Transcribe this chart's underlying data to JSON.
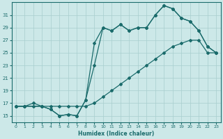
{
  "xlabel": "Humidex (Indice chaleur)",
  "bg_color": "#cce8e8",
  "line_color": "#1a6b6b",
  "grid_color": "#a8cece",
  "xlim": [
    -0.5,
    23.5
  ],
  "ylim": [
    14.0,
    33.0
  ],
  "yticks": [
    15,
    17,
    19,
    21,
    23,
    25,
    27,
    29,
    31
  ],
  "xticks": [
    0,
    1,
    2,
    3,
    4,
    5,
    6,
    7,
    8,
    9,
    10,
    11,
    12,
    13,
    14,
    15,
    16,
    17,
    18,
    19,
    20,
    21,
    22,
    23
  ],
  "line1_x": [
    0,
    1,
    2,
    3,
    4,
    5,
    6,
    7,
    8,
    9,
    10,
    11,
    12,
    13,
    14,
    15,
    16,
    17,
    18,
    19,
    20,
    21,
    22,
    23
  ],
  "line1_y": [
    16.5,
    16.5,
    16.5,
    16.5,
    16.5,
    16.5,
    16.5,
    16.5,
    16.5,
    17.0,
    18.0,
    19.0,
    20.0,
    21.0,
    22.0,
    23.0,
    24.0,
    25.0,
    26.0,
    26.5,
    27.0,
    27.0,
    25.0,
    25.0
  ],
  "line2_x": [
    0,
    1,
    2,
    3,
    4,
    5,
    6,
    7,
    8,
    9,
    10,
    11,
    12,
    13,
    14,
    15,
    16,
    17,
    18,
    19,
    20,
    21,
    22,
    23
  ],
  "line2_y": [
    16.5,
    16.5,
    17.0,
    16.5,
    16.0,
    15.0,
    15.2,
    15.0,
    17.5,
    23.0,
    29.0,
    28.5,
    29.5,
    28.5,
    29.0,
    29.0,
    31.0,
    32.5,
    32.0,
    30.5,
    30.0,
    28.5,
    26.0,
    25.0
  ],
  "line3_x": [
    0,
    1,
    3,
    4,
    5,
    6,
    7,
    8,
    9,
    10,
    11,
    12,
    13,
    14,
    15,
    16,
    17,
    18,
    19,
    20,
    21,
    22,
    23
  ],
  "line3_y": [
    16.5,
    16.5,
    16.5,
    16.0,
    15.0,
    15.2,
    15.0,
    17.5,
    26.5,
    29.0,
    28.5,
    29.5,
    28.5,
    29.0,
    29.0,
    31.0,
    32.5,
    32.0,
    30.5,
    30.0,
    28.5,
    26.0,
    25.0
  ]
}
